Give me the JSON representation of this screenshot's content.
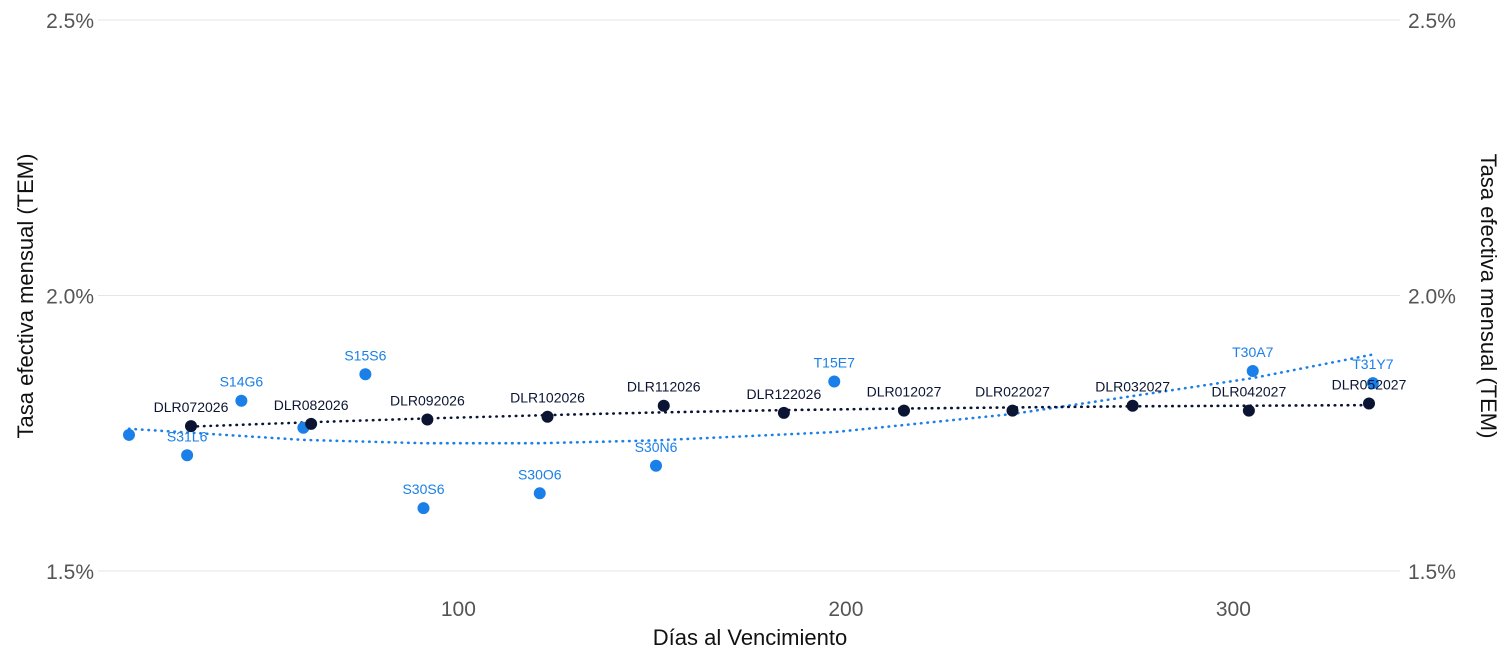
{
  "chart_data": {
    "type": "scatter",
    "xlabel": "Días al Vencimiento",
    "ylabel_left": "Tasa efectiva mensual (TEM)",
    "ylabel_right": "Tasa efectiva mensual (TEM)",
    "xlim": [
      7,
      343
    ],
    "ylim": [
      1.5,
      2.5
    ],
    "x_ticks": [
      100,
      200,
      300
    ],
    "x_tick_labels": [
      "100",
      "200",
      "300"
    ],
    "y_ticks": [
      1.5,
      2.0,
      2.5
    ],
    "y_tick_labels": [
      "1.5%",
      "2.0%",
      "2.5%"
    ],
    "grid": true,
    "colors": {
      "series_lecap": "#1a7fe8",
      "series_dlr": "#0b1533",
      "grid": "#e6e6e6"
    },
    "series": [
      {
        "points": [
          {
            "label": "",
            "x": 15,
            "y": 1.747
          },
          {
            "label": "S31L6",
            "x": 30,
            "y": 1.71
          },
          {
            "label": "S14G6",
            "x": 44,
            "y": 1.809
          },
          {
            "label": "",
            "x": 60,
            "y": 1.76
          },
          {
            "label": "S15S6",
            "x": 76,
            "y": 1.857
          },
          {
            "label": "S30S6",
            "x": 91,
            "y": 1.614
          },
          {
            "label": "S30O6",
            "x": 121,
            "y": 1.641
          },
          {
            "label": "S30N6",
            "x": 151,
            "y": 1.691
          },
          {
            "label": "T15E7",
            "x": 197,
            "y": 1.844
          },
          {
            "label": "T30A7",
            "x": 305,
            "y": 1.863
          },
          {
            "label": "T31Y7",
            "x": 336,
            "y": 1.841
          }
        ]
      },
      {
        "points": [
          {
            "label": "DLR072026",
            "x": 31,
            "y": 1.763
          },
          {
            "label": "DLR082026",
            "x": 62,
            "y": 1.767
          },
          {
            "label": "DLR092026",
            "x": 92,
            "y": 1.775
          },
          {
            "label": "DLR102026",
            "x": 123,
            "y": 1.78
          },
          {
            "label": "DLR112026",
            "x": 153,
            "y": 1.8
          },
          {
            "label": "DLR122026",
            "x": 184,
            "y": 1.787
          },
          {
            "label": "DLR012027",
            "x": 215,
            "y": 1.791
          },
          {
            "label": "DLR022027",
            "x": 243,
            "y": 1.791
          },
          {
            "label": "DLR032027",
            "x": 274,
            "y": 1.8
          },
          {
            "label": "DLR042027",
            "x": 304,
            "y": 1.791
          },
          {
            "label": "DLR052027",
            "x": 335,
            "y": 1.804
          }
        ]
      }
    ],
    "trendlines": [
      {
        "series_index": 0,
        "style": "dotted",
        "points": [
          [
            15,
            1.758
          ],
          [
            60,
            1.738
          ],
          [
            91,
            1.732
          ],
          [
            121,
            1.732
          ],
          [
            151,
            1.737
          ],
          [
            197,
            1.752
          ],
          [
            243,
            1.785
          ],
          [
            305,
            1.85
          ],
          [
            336,
            1.893
          ]
        ]
      },
      {
        "series_index": 1,
        "style": "dotted",
        "points": [
          [
            31,
            1.762
          ],
          [
            62,
            1.77
          ],
          [
            92,
            1.777
          ],
          [
            123,
            1.783
          ],
          [
            153,
            1.788
          ],
          [
            184,
            1.792
          ],
          [
            215,
            1.795
          ],
          [
            243,
            1.797
          ],
          [
            274,
            1.799
          ],
          [
            304,
            1.8
          ],
          [
            335,
            1.801
          ]
        ]
      }
    ]
  }
}
